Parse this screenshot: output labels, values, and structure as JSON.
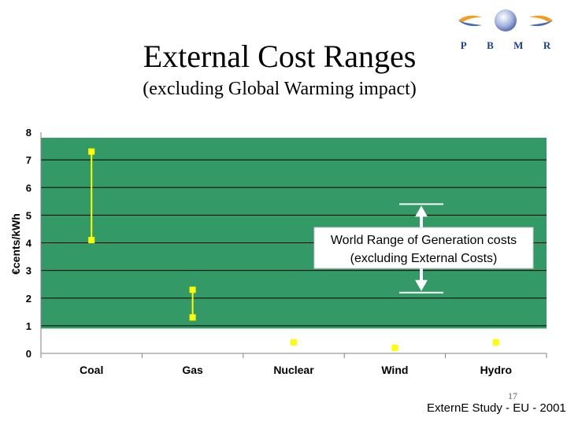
{
  "slide": {
    "title": "External Cost Ranges",
    "subtitle": "(excluding Global Warming impact)",
    "page_number": "17",
    "footer": "ExternE Study - EU - 2001",
    "logo_letters": [
      "P",
      "B",
      "M",
      "R"
    ]
  },
  "chart_data": {
    "type": "range",
    "title": "External Cost Ranges",
    "ylabel": "€cents/kWh",
    "xlabel": "",
    "ylim": [
      0,
      8
    ],
    "yticks": [
      0,
      1,
      2,
      3,
      4,
      5,
      6,
      7,
      8
    ],
    "grid": true,
    "categories": [
      "Coal",
      "Gas",
      "Nuclear",
      "Wind",
      "Hydro"
    ],
    "ranges": [
      {
        "category": "Coal",
        "low": 4.1,
        "high": 7.3
      },
      {
        "category": "Gas",
        "low": 1.3,
        "high": 2.3
      },
      {
        "category": "Nuclear",
        "low": 0.4,
        "high": 0.4
      },
      {
        "category": "Wind",
        "low": 0.2,
        "high": 0.2
      },
      {
        "category": "Hydro",
        "low": 0.4,
        "high": 0.4
      }
    ],
    "annotation": {
      "line1": "World Range of Generation costs",
      "line2": "(excluding External Costs)",
      "range_low": 2.2,
      "range_high": 5.4
    },
    "colors": {
      "plot_bg": "#339966",
      "marker": "#ffff00",
      "gridline": "#000000",
      "arrow": "#ffffff"
    }
  }
}
